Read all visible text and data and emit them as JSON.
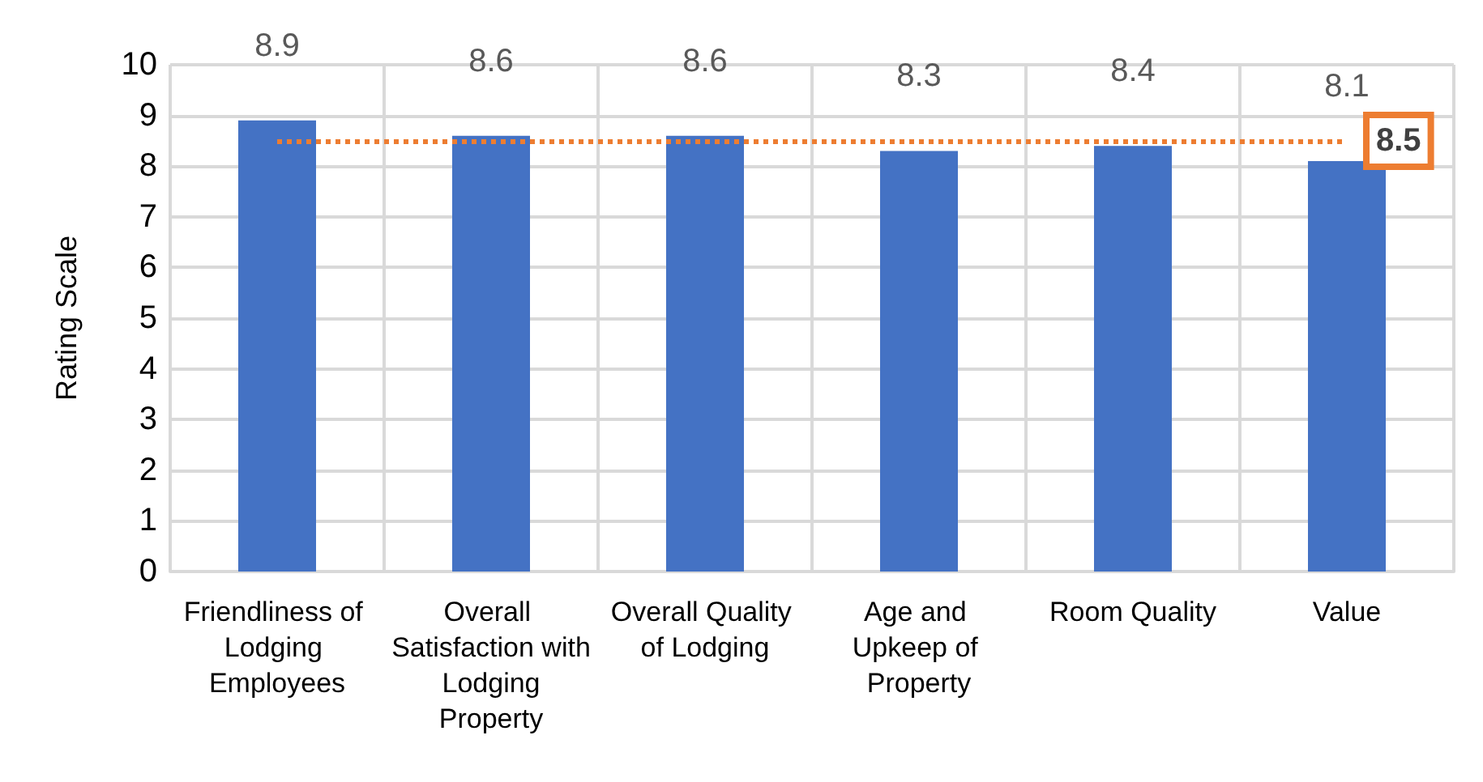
{
  "chart_data": {
    "type": "bar",
    "ylabel": "Rating Scale",
    "categories": [
      "Friendliness of Lodging Employees",
      "Overall Satisfaction with Lodging Property",
      "Overall Quality of Lodging",
      "Age and Upkeep of Property",
      "Room Quality",
      "Value"
    ],
    "values": [
      8.9,
      8.6,
      8.6,
      8.3,
      8.4,
      8.1
    ],
    "color": "#4472c4",
    "data_labels": true,
    "ylim": [
      0,
      10
    ],
    "yticks": [
      0,
      1,
      2,
      3,
      4,
      5,
      6,
      7,
      8,
      9,
      10
    ],
    "grid": true,
    "ref_lines": [
      {
        "axis": "y",
        "value": 8.5,
        "label": "8.5",
        "color": "#ed7d31",
        "line_style": "dotted"
      }
    ]
  }
}
